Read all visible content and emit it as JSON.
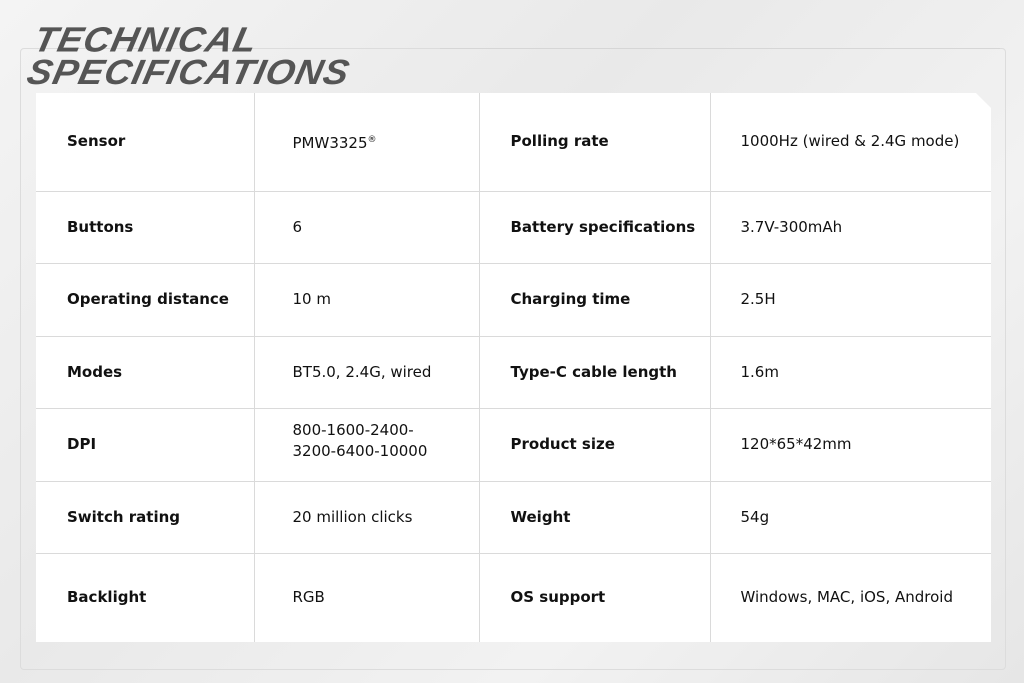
{
  "title": {
    "line1": "TECHNICAL",
    "line2": "SPECIFICATIONS"
  },
  "rows": [
    {
      "k1": "Sensor",
      "v1": "PMW3325",
      "v1_mark": "®",
      "k2": "Polling rate",
      "v2": "1000Hz (wired & 2.4G mode)"
    },
    {
      "k1": "Buttons",
      "v1": "6",
      "k2": "Battery specifications",
      "v2": "3.7V-300mAh"
    },
    {
      "k1": "Operating distance",
      "v1": "10 m",
      "k2": "Charging time",
      "v2": "2.5H"
    },
    {
      "k1": "Modes",
      "v1": "BT5.0, 2.4G, wired",
      "k2": "Type-C cable length",
      "v2": "1.6m"
    },
    {
      "k1": "DPI",
      "v1": "800-1600-2400-",
      "v1b": "3200-6400-10000",
      "k2": "Product size",
      "v2": "120*65*42mm"
    },
    {
      "k1": "Switch rating",
      "v1": "20 million clicks",
      "k2": "Weight",
      "v2": "54g"
    },
    {
      "k1": "Backlight",
      "v1": "RGB",
      "k2": "OS support",
      "v2": "Windows, MAC, iOS, Android"
    }
  ]
}
